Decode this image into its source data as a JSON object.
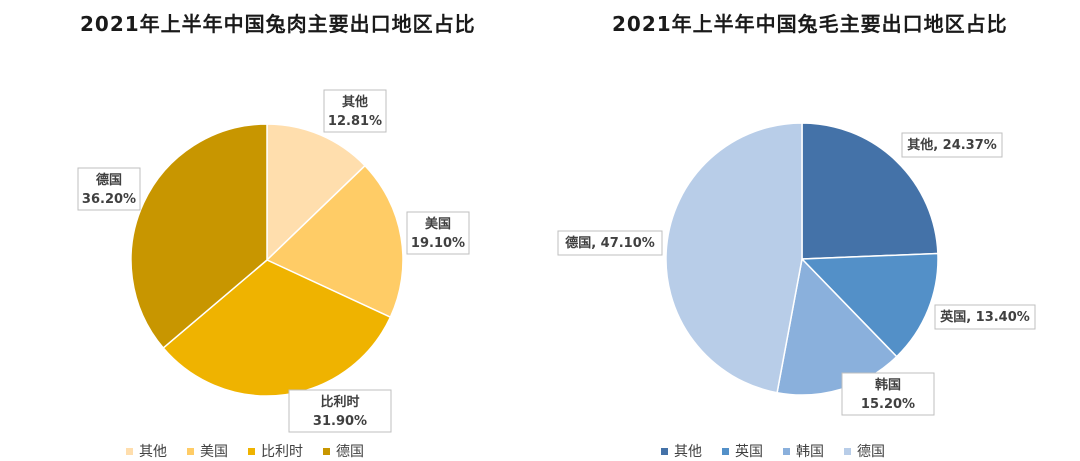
{
  "chart_data": [
    {
      "type": "pie",
      "title": "2021年上半年中国兔肉主要出口地区占比",
      "categories": [
        "其他",
        "美国",
        "比利时",
        "德国"
      ],
      "values": [
        12.81,
        19.1,
        31.9,
        36.2
      ],
      "value_labels": [
        "12.81%",
        "19.10%",
        "31.90%",
        "36.20%"
      ],
      "colors": [
        "#FFDEAD",
        "#FFCC66",
        "#EFB300",
        "#C89600"
      ],
      "legend": "bottom"
    },
    {
      "type": "pie",
      "title": "2021年上半年中国兔毛主要出口地区占比",
      "categories": [
        "其他",
        "英国",
        "韩国",
        "德国"
      ],
      "values": [
        24.37,
        13.4,
        15.2,
        47.1
      ],
      "value_labels": [
        "24.37%",
        "13.40%",
        "15.20%",
        "47.10%"
      ],
      "colors": [
        "#4472A8",
        "#5390C8",
        "#8AB0DC",
        "#B8CDE8"
      ],
      "legend": "bottom"
    }
  ]
}
